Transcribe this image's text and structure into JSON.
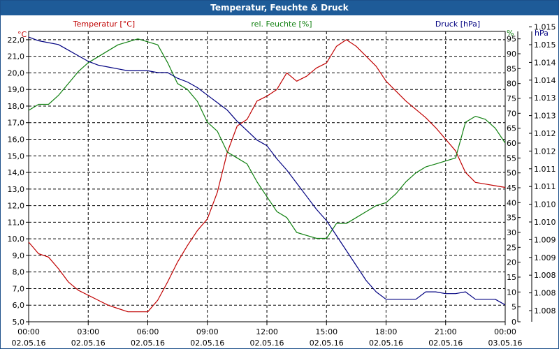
{
  "window": {
    "title": "Temperatur, Feuchte & Druck"
  },
  "chart_data": {
    "type": "line",
    "title": "Temperatur, Feuchte & Druck",
    "x_ticks": [
      {
        "time": "00:00",
        "date": "02.05.16"
      },
      {
        "time": "03:00",
        "date": "02.05.16"
      },
      {
        "time": "06:00",
        "date": "02.05.16"
      },
      {
        "time": "09:00",
        "date": "02.05.16"
      },
      {
        "time": "12:00",
        "date": "02.05.16"
      },
      {
        "time": "15:00",
        "date": "02.05.16"
      },
      {
        "time": "18:00",
        "date": "02.05.16"
      },
      {
        "time": "21:00",
        "date": "02.05.16"
      },
      {
        "time": "00:00",
        "date": "03.05.16"
      }
    ],
    "xlim": [
      0,
      24
    ],
    "grid": true,
    "axes": {
      "temperature": {
        "unit": "°C",
        "label": "Temperatur [°C]",
        "color": "#c00000",
        "range": [
          5,
          22.5
        ],
        "ticks": [
          "5,0",
          "6,0",
          "7,0",
          "8,0",
          "9,0",
          "10,0",
          "11,0",
          "12,0",
          "13,0",
          "14,0",
          "15,0",
          "16,0",
          "17,0",
          "18,0",
          "19,0",
          "20,0",
          "21,0",
          "22,0"
        ]
      },
      "humidity": {
        "unit": "%",
        "label": "rel. Feuchte [%]",
        "color": "#108010",
        "range": [
          0,
          97.5
        ],
        "ticks": [
          "0",
          "5",
          "10",
          "15",
          "20",
          "25",
          "30",
          "35",
          "40",
          "45",
          "50",
          "55",
          "60",
          "65",
          "70",
          "75",
          "80",
          "85",
          "90",
          "95"
        ]
      },
      "pressure": {
        "unit": "hPa",
        "label": "Druck [hPa]",
        "color": "#000080",
        "range": [
          1007.5,
          1015.25
        ],
        "ticks": [
          "1.008",
          "1.008",
          "1.008",
          "1.009",
          "1.009",
          "1.010",
          "1.010",
          "1.011",
          "1.011",
          "1.012",
          "1.012",
          "1.013",
          "1.013",
          "1.014",
          "1.014",
          "1.015",
          "1.015"
        ]
      }
    },
    "series": [
      {
        "name": "Temperatur [°C]",
        "axis": "temperature",
        "color": "#c00000",
        "x": [
          0,
          0.5,
          1,
          1.5,
          2,
          2.5,
          3,
          3.5,
          4,
          4.5,
          5,
          5.5,
          6,
          6.5,
          7,
          7.5,
          8,
          8.5,
          9,
          9.5,
          10,
          10.5,
          11,
          11.5,
          12,
          12.5,
          13,
          13.5,
          14,
          14.5,
          15,
          15.5,
          16,
          16.5,
          17,
          17.5,
          18,
          18.5,
          19,
          19.5,
          20,
          20.5,
          21,
          21.5,
          22,
          22.5,
          23,
          23.5,
          24
        ],
        "y": [
          9.8,
          9.1,
          8.9,
          8.2,
          7.4,
          6.9,
          6.6,
          6.3,
          6.0,
          5.8,
          5.6,
          5.6,
          5.6,
          6.3,
          7.4,
          8.6,
          9.6,
          10.5,
          11.2,
          12.8,
          15.2,
          16.8,
          17.2,
          18.3,
          18.6,
          19.0,
          20.0,
          19.5,
          19.8,
          20.3,
          20.6,
          21.6,
          22.0,
          21.6,
          21.0,
          20.4,
          19.5,
          18.9,
          18.3,
          17.8,
          17.3,
          16.7,
          16.0,
          15.3,
          14.0,
          13.4,
          13.3,
          13.2,
          13.1
        ]
      },
      {
        "name": "rel. Feuchte [%]",
        "axis": "humidity",
        "color": "#108010",
        "x": [
          0,
          0.5,
          1,
          1.5,
          2,
          2.5,
          3,
          3.5,
          4,
          4.5,
          5,
          5.5,
          6,
          6.5,
          7,
          7.5,
          8,
          8.5,
          9,
          9.5,
          10,
          10.5,
          11,
          11.5,
          12,
          12.5,
          13,
          13.5,
          14,
          14.5,
          15,
          15.5,
          16,
          16.5,
          17,
          17.5,
          18,
          18.5,
          19,
          19.5,
          20,
          20.5,
          21,
          21.5,
          22,
          22.5,
          23,
          23.5,
          24
        ],
        "y": [
          71,
          73,
          73,
          76,
          80,
          84,
          87,
          89,
          91,
          93,
          94,
          95,
          94,
          93,
          87,
          80,
          78,
          74,
          67,
          64,
          57,
          55,
          53,
          47,
          42,
          37,
          35,
          30,
          29,
          28,
          28,
          33,
          33,
          35,
          37,
          39,
          40,
          43,
          47,
          50,
          52,
          53,
          54,
          55,
          67,
          69,
          68,
          65,
          60
        ]
      },
      {
        "name": "Druck [hPa]",
        "axis": "pressure",
        "color": "#000080",
        "x": [
          0,
          0.5,
          1,
          1.5,
          2,
          2.5,
          3,
          3.5,
          4,
          4.5,
          5,
          5.5,
          6,
          6.5,
          7,
          7.5,
          8,
          8.5,
          9,
          9.5,
          10,
          10.5,
          11,
          11.5,
          12,
          12.5,
          13,
          13.5,
          14,
          14.5,
          15,
          15.5,
          16,
          16.5,
          17,
          17.5,
          18,
          18.5,
          19,
          19.5,
          20,
          20.5,
          21,
          21.5,
          22,
          22.5,
          23,
          23.5,
          24
        ],
        "y": [
          1015.1,
          1015.0,
          1014.95,
          1014.9,
          1014.75,
          1014.6,
          1014.45,
          1014.35,
          1014.3,
          1014.25,
          1014.2,
          1014.2,
          1014.2,
          1014.15,
          1014.15,
          1014.0,
          1013.9,
          1013.75,
          1013.55,
          1013.35,
          1013.15,
          1012.85,
          1012.6,
          1012.35,
          1012.2,
          1011.85,
          1011.55,
          1011.2,
          1010.85,
          1010.5,
          1010.2,
          1009.8,
          1009.4,
          1009.0,
          1008.6,
          1008.3,
          1008.1,
          1008.1,
          1008.1,
          1008.1,
          1008.3,
          1008.3,
          1008.25,
          1008.25,
          1008.3,
          1008.1,
          1008.1,
          1008.1,
          1007.95
        ]
      }
    ]
  }
}
